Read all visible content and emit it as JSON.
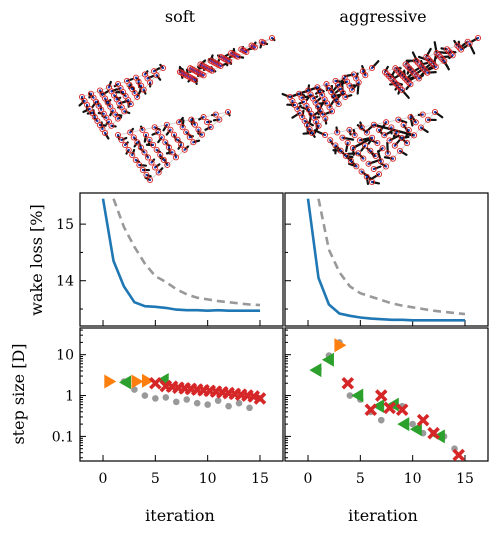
{
  "chart_data": [
    {
      "type": "scatter",
      "panel": "layout",
      "title": "soft",
      "description_series": [
        "turbine positions (red circles)",
        "black trajectories"
      ]
    },
    {
      "type": "scatter",
      "panel": "layout",
      "title": "aggressive",
      "description_series": [
        "turbine positions (red circles)",
        "black trajectories"
      ]
    },
    {
      "type": "line",
      "panel": "wake-loss-soft",
      "ylabel": "wake loss [%]",
      "xlim": [
        -2.2,
        17.2
      ],
      "ylim": [
        13.2,
        15.55
      ],
      "yticks": [
        14,
        15
      ],
      "series": [
        {
          "style": "solid",
          "color": "#1f77b4",
          "x": [
            0,
            1,
            2,
            3,
            4,
            5,
            6,
            7,
            8,
            9,
            10,
            11,
            12,
            13,
            14,
            15
          ],
          "values": [
            15.45,
            14.35,
            13.9,
            13.62,
            13.55,
            13.54,
            13.52,
            13.49,
            13.48,
            13.48,
            13.47,
            13.48,
            13.47,
            13.47,
            13.47,
            13.47
          ]
        },
        {
          "style": "dashed",
          "color": "#999999",
          "x": [
            1,
            2,
            3,
            4,
            5,
            6,
            7,
            8,
            9,
            10,
            11,
            12,
            13,
            14,
            15
          ],
          "values": [
            15.45,
            14.95,
            14.6,
            14.3,
            14.08,
            13.98,
            13.85,
            13.76,
            13.7,
            13.67,
            13.64,
            13.62,
            13.6,
            13.58,
            13.57
          ]
        }
      ]
    },
    {
      "type": "line",
      "panel": "wake-loss-aggressive",
      "xlim": [
        -2.2,
        17.2
      ],
      "ylim": [
        13.2,
        15.55
      ],
      "series": [
        {
          "style": "solid",
          "color": "#1f77b4",
          "x": [
            0,
            1,
            2,
            3,
            4,
            5,
            6,
            7,
            8,
            9,
            10,
            11,
            12,
            13,
            14,
            15
          ],
          "values": [
            15.45,
            14.05,
            13.58,
            13.42,
            13.38,
            13.35,
            13.33,
            13.32,
            13.31,
            13.31,
            13.3,
            13.3,
            13.3,
            13.3,
            13.3,
            13.3
          ]
        },
        {
          "style": "dashed",
          "color": "#999999",
          "x": [
            1,
            2,
            3,
            4,
            5,
            6,
            7,
            8,
            9,
            10,
            11,
            12,
            13,
            14,
            15
          ],
          "values": [
            15.45,
            14.55,
            14.15,
            13.9,
            13.78,
            13.72,
            13.66,
            13.6,
            13.56,
            13.53,
            13.5,
            13.47,
            13.45,
            13.43,
            13.41
          ]
        }
      ]
    },
    {
      "type": "scatter",
      "panel": "step-soft",
      "xlabel": "iteration",
      "ylabel": "step size [D]",
      "yscale": "log",
      "xlim": [
        -2.2,
        17.2
      ],
      "ylim": [
        0.025,
        45
      ],
      "xticks": [
        0,
        5,
        10,
        15
      ],
      "ytick_labels": [
        "10",
        "1",
        "0.1"
      ],
      "ytick_values": [
        10,
        1,
        0.1
      ],
      "series": [
        {
          "marker": "gray-dot",
          "color": "#999999",
          "points": [
            [
              2,
              2.2
            ],
            [
              3,
              1.4
            ],
            [
              4,
              1.0
            ],
            [
              5,
              0.85
            ],
            [
              6,
              0.9
            ],
            [
              7,
              0.7
            ],
            [
              8,
              0.8
            ],
            [
              9,
              0.65
            ],
            [
              10,
              0.6
            ],
            [
              11,
              0.75
            ],
            [
              12,
              0.55
            ],
            [
              13,
              0.65
            ],
            [
              14,
              0.5
            ],
            [
              15,
              0.85
            ]
          ]
        },
        {
          "marker": "orange-triangle-right",
          "color": "#ff7f0e",
          "points": [
            [
              0.6,
              2.2
            ],
            [
              3.2,
              2.2
            ],
            [
              4.2,
              2.3
            ]
          ]
        },
        {
          "marker": "green-triangle-left",
          "color": "#2ca02c",
          "points": [
            [
              2.2,
              2.1
            ],
            [
              5.8,
              2.4
            ]
          ]
        },
        {
          "marker": "red-x",
          "color": "#d62728",
          "points": [
            [
              5,
              2.0
            ],
            [
              6,
              1.7
            ],
            [
              6.6,
              1.65
            ],
            [
              7.2,
              1.55
            ],
            [
              7.8,
              1.5
            ],
            [
              8.4,
              1.45
            ],
            [
              9,
              1.4
            ],
            [
              9.6,
              1.35
            ],
            [
              10.2,
              1.3
            ],
            [
              10.8,
              1.25
            ],
            [
              11.4,
              1.2
            ],
            [
              12,
              1.15
            ],
            [
              12.6,
              1.1
            ],
            [
              13.2,
              1.05
            ],
            [
              13.8,
              1.0
            ],
            [
              14.4,
              0.95
            ],
            [
              15,
              0.85
            ]
          ]
        }
      ]
    },
    {
      "type": "scatter",
      "panel": "step-aggressive",
      "xlabel": "iteration",
      "yscale": "log",
      "xlim": [
        -2.2,
        17.2
      ],
      "ylim": [
        0.025,
        45
      ],
      "xticks": [
        0,
        5,
        10,
        15
      ],
      "series": [
        {
          "marker": "gray-dot",
          "color": "#999999",
          "points": [
            [
              1,
              4.5
            ],
            [
              2,
              9.5
            ],
            [
              3,
              20
            ],
            [
              4,
              1.0
            ],
            [
              5,
              0.8
            ],
            [
              6,
              0.4
            ],
            [
              7,
              0.25
            ],
            [
              8,
              0.55
            ],
            [
              9,
              0.55
            ],
            [
              10,
              0.2
            ],
            [
              11,
              0.12
            ],
            [
              12,
              0.12
            ],
            [
              13,
              0.1
            ],
            [
              14,
              0.05
            ]
          ]
        },
        {
          "marker": "orange-triangle-right",
          "color": "#ff7f0e",
          "points": [
            [
              3,
              17
            ]
          ]
        },
        {
          "marker": "green-triangle-left",
          "color": "#2ca02c",
          "points": [
            [
              0.8,
              4.2
            ],
            [
              2,
              7.5
            ],
            [
              4.8,
              1.0
            ],
            [
              6.8,
              0.55
            ],
            [
              8.2,
              0.6
            ],
            [
              9.2,
              0.2
            ],
            [
              10.4,
              0.15
            ],
            [
              12.6,
              0.1
            ]
          ]
        },
        {
          "marker": "red-x",
          "color": "#d62728",
          "points": [
            [
              3.8,
              2.0
            ],
            [
              6,
              0.45
            ],
            [
              7,
              1.0
            ],
            [
              7.8,
              0.5
            ],
            [
              9,
              0.45
            ],
            [
              11,
              0.25
            ],
            [
              12,
              0.12
            ],
            [
              14.4,
              0.035
            ]
          ]
        }
      ]
    }
  ]
}
